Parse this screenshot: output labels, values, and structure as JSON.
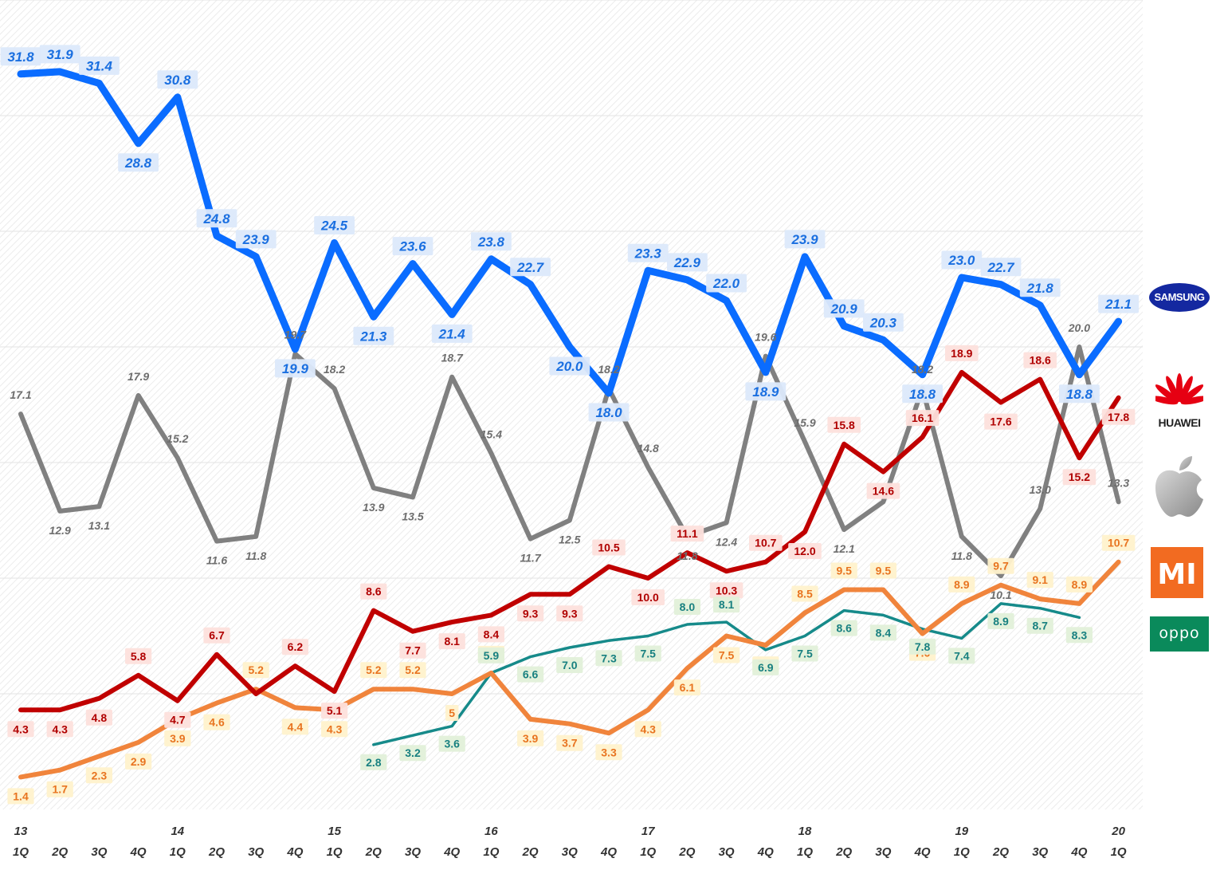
{
  "chart_data": {
    "type": "line",
    "title": "",
    "xlabel": "",
    "ylabel": "",
    "x_year_labels": [
      "13",
      "",
      "",
      "",
      "14",
      "",
      "",
      "",
      "15",
      "",
      "",
      "",
      "16",
      "",
      "",
      "",
      "17",
      "",
      "",
      "",
      "18",
      "",
      "",
      "",
      "19",
      "",
      "",
      "",
      "20"
    ],
    "x_quarter_labels": [
      "1Q",
      "2Q",
      "3Q",
      "4Q",
      "1Q",
      "2Q",
      "3Q",
      "4Q",
      "1Q",
      "2Q",
      "3Q",
      "4Q",
      "1Q",
      "2Q",
      "3Q",
      "4Q",
      "1Q",
      "2Q",
      "3Q",
      "4Q",
      "1Q",
      "2Q",
      "3Q",
      "4Q",
      "1Q",
      "2Q",
      "3Q",
      "4Q",
      "1Q"
    ],
    "ylim": [
      0,
      35
    ],
    "grid": true,
    "series": [
      {
        "name": "SAMSUNG",
        "color": "#0a6cff",
        "label_color": "#1a6fe0",
        "label_bg": "#dce9fb",
        "values": [
          31.8,
          31.9,
          31.4,
          28.8,
          30.8,
          24.8,
          23.9,
          19.9,
          24.5,
          21.3,
          23.6,
          21.4,
          23.8,
          22.7,
          20.0,
          18.0,
          23.3,
          22.9,
          22.0,
          18.9,
          23.9,
          20.9,
          20.3,
          18.8,
          23.0,
          22.7,
          21.8,
          18.8,
          21.1
        ],
        "labels": [
          "31.8",
          "31.9",
          "31.4",
          "28.8",
          "30.8",
          "24.8",
          "23.9",
          "19.9",
          "24.5",
          "21.3",
          "23.6",
          "21.4",
          "23.8",
          "22.7",
          "20.0",
          "18.0",
          "23.3",
          "22.9",
          "22.0",
          "18.9",
          "23.9",
          "20.9",
          "20.3",
          "18.8",
          "23.0",
          "22.7",
          "21.8",
          "18.8",
          "21.1"
        ]
      },
      {
        "name": "Apple",
        "color": "#808080",
        "label_color": "#6e6e6e",
        "label_bg": "#f4f4f4",
        "values": [
          17.1,
          12.9,
          13.1,
          17.9,
          15.2,
          11.6,
          11.8,
          19.7,
          18.2,
          13.9,
          13.5,
          18.7,
          15.4,
          11.7,
          12.5,
          18.2,
          14.8,
          11.8,
          12.4,
          19.6,
          15.9,
          12.1,
          13.3,
          18.2,
          11.8,
          10.1,
          13.0,
          20.0,
          13.3
        ],
        "labels": [
          "17.1",
          "12.9",
          "13.1",
          "17.9",
          "15.2",
          "11.6",
          "11.8",
          "19.7",
          "18.2",
          "13.9",
          "13.5",
          "18.7",
          "15.4",
          "11.7",
          "12.5",
          "18.2",
          "14.8",
          "11.8",
          "12.4",
          "19.6",
          "15.9",
          "12.1",
          "",
          "18.2",
          "11.8",
          "10.1",
          "13.0",
          "20.0",
          "13.3"
        ]
      },
      {
        "name": "HUAWEI",
        "color": "#c00000",
        "label_color": "#b00000",
        "label_bg": "#fde0dc",
        "values": [
          4.3,
          4.3,
          4.8,
          5.8,
          4.7,
          6.7,
          5.0,
          6.2,
          5.1,
          8.6,
          7.7,
          8.1,
          8.4,
          9.3,
          9.3,
          10.5,
          10.0,
          11.1,
          10.3,
          10.7,
          12.0,
          15.8,
          14.6,
          16.1,
          18.9,
          17.6,
          18.6,
          15.2,
          17.8
        ],
        "labels": [
          "4.3",
          "4.3",
          "4.8",
          "5.8",
          "4.7",
          "6.7",
          "",
          "6.2",
          "5.1",
          "8.6",
          "7.7",
          "8.1",
          "8.4",
          "9.3",
          "9.3",
          "10.5",
          "10.0",
          "11.1",
          "10.3",
          "10.7",
          "12.0",
          "15.8",
          "14.6",
          "16.1",
          "18.9",
          "17.6",
          "18.6",
          "15.2",
          "17.8"
        ]
      },
      {
        "name": "MI",
        "color": "#f0843c",
        "label_color": "#e87420",
        "label_bg": "#fff2cc",
        "values": [
          1.4,
          1.7,
          2.3,
          2.9,
          3.9,
          4.6,
          5.2,
          4.4,
          4.3,
          5.2,
          5.2,
          5.0,
          5.9,
          3.9,
          3.7,
          3.3,
          4.3,
          6.1,
          7.5,
          7.1,
          8.5,
          9.5,
          9.5,
          7.6,
          8.9,
          9.7,
          9.1,
          8.9,
          10.7
        ],
        "labels": [
          "1.4",
          "1.7",
          "2.3",
          "2.9",
          "3.9",
          "4.6",
          "5.2",
          "4.4",
          "4.3",
          "5.2",
          "5.2",
          "5",
          "5.9",
          "3.9",
          "3.7",
          "3.3",
          "4.3",
          "6.1",
          "7.5",
          "7.1",
          "8.5",
          "9.5",
          "9.5",
          "7.6",
          "8.9",
          "9.7",
          "9.1",
          "8.9",
          "10.7"
        ]
      },
      {
        "name": "OPPO",
        "color": "#168a8a",
        "label_color": "#188080",
        "label_bg": "#e2f0d9",
        "values": [
          null,
          null,
          null,
          null,
          null,
          null,
          null,
          null,
          null,
          2.8,
          3.2,
          3.6,
          5.9,
          6.6,
          7.0,
          7.3,
          7.5,
          8.0,
          8.1,
          6.9,
          7.5,
          8.6,
          8.4,
          7.8,
          7.4,
          8.9,
          8.7,
          8.3,
          null
        ],
        "labels": [
          "",
          "",
          "",
          "",
          "",
          "",
          "",
          "",
          "",
          "2.8",
          "3.2",
          "3.6",
          "5.9",
          "6.6",
          "7.0",
          "7.3",
          "7.5",
          "8.0",
          "8.1",
          "6.9",
          "7.5",
          "8.6",
          "8.4",
          "7.8",
          "7.4",
          "8.9",
          "8.7",
          "8.3",
          ""
        ]
      }
    ]
  },
  "legend_logos": {
    "samsung": "SAMSUNG",
    "huawei": "HUAWEI",
    "apple": "apple-logo",
    "mi": "MI",
    "oppo": "oppo"
  }
}
